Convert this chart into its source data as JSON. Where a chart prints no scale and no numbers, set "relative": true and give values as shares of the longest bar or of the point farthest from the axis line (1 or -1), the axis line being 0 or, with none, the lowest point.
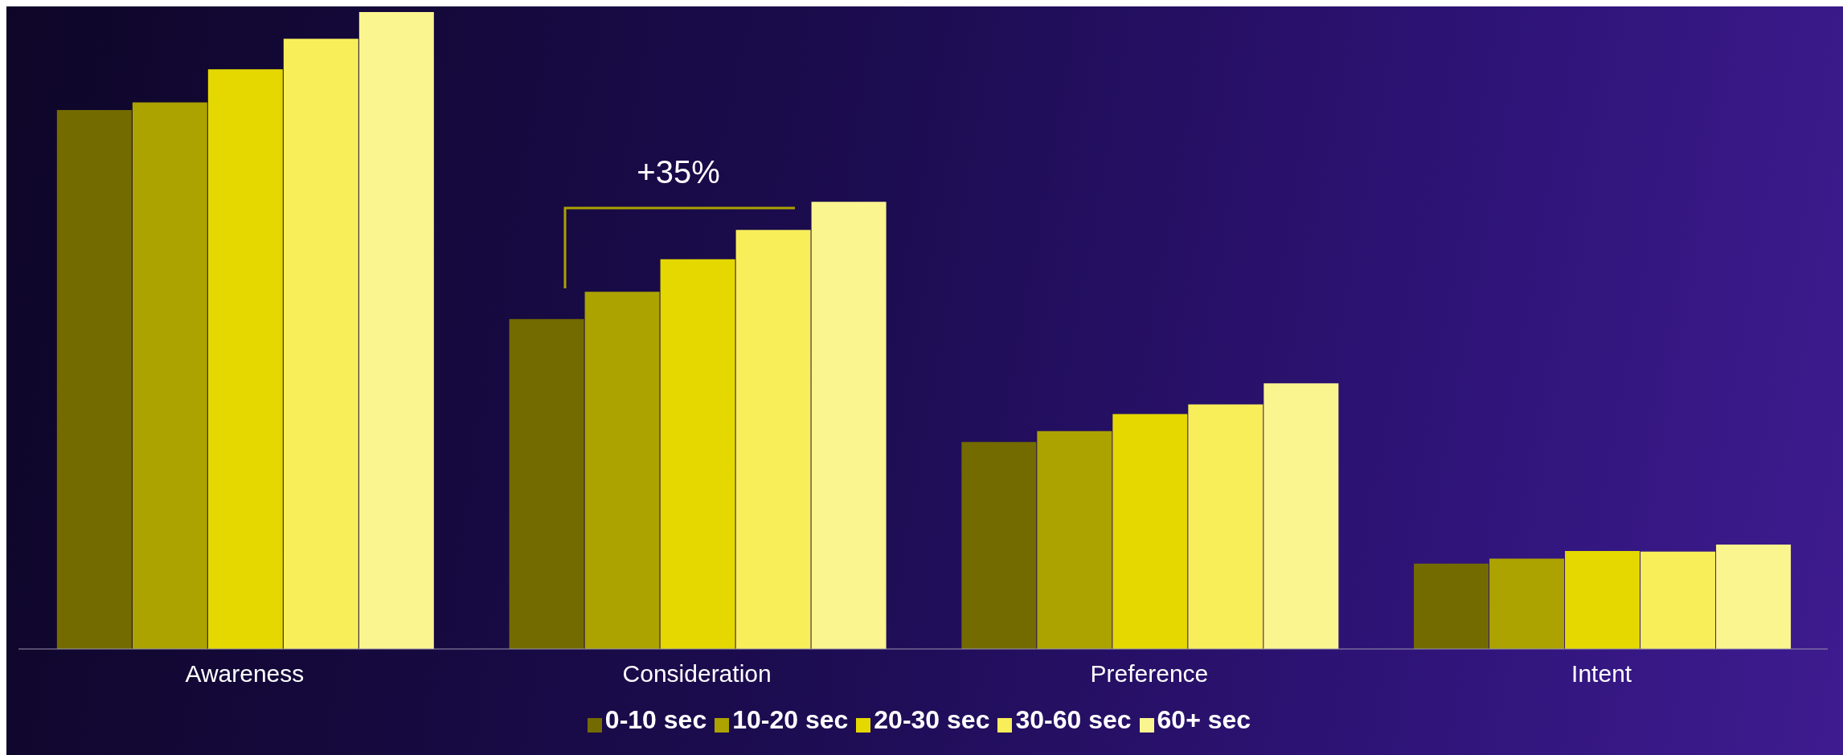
{
  "chart_data": {
    "type": "bar",
    "relative": true,
    "categories": [
      "Awareness",
      "Consideration",
      "Preference",
      "Intent"
    ],
    "series": [
      {
        "name": "0-10 sec",
        "color": "#736b00",
        "values": [
          0.846,
          0.518,
          0.325,
          0.134
        ]
      },
      {
        "name": "10-20 sec",
        "color": "#aca200",
        "values": [
          0.858,
          0.561,
          0.342,
          0.142
        ]
      },
      {
        "name": "20-30 sec",
        "color": "#e4d800",
        "values": [
          0.91,
          0.612,
          0.369,
          0.154
        ]
      },
      {
        "name": "30-60 sec",
        "color": "#f8ee5a",
        "values": [
          0.958,
          0.658,
          0.384,
          0.153
        ]
      },
      {
        "name": "60+ sec",
        "color": "#fbf590",
        "values": [
          1,
          0.702,
          0.417,
          0.164
        ]
      }
    ],
    "annotations": [
      "+35%"
    ],
    "legend": "bottom",
    "grid": false
  }
}
